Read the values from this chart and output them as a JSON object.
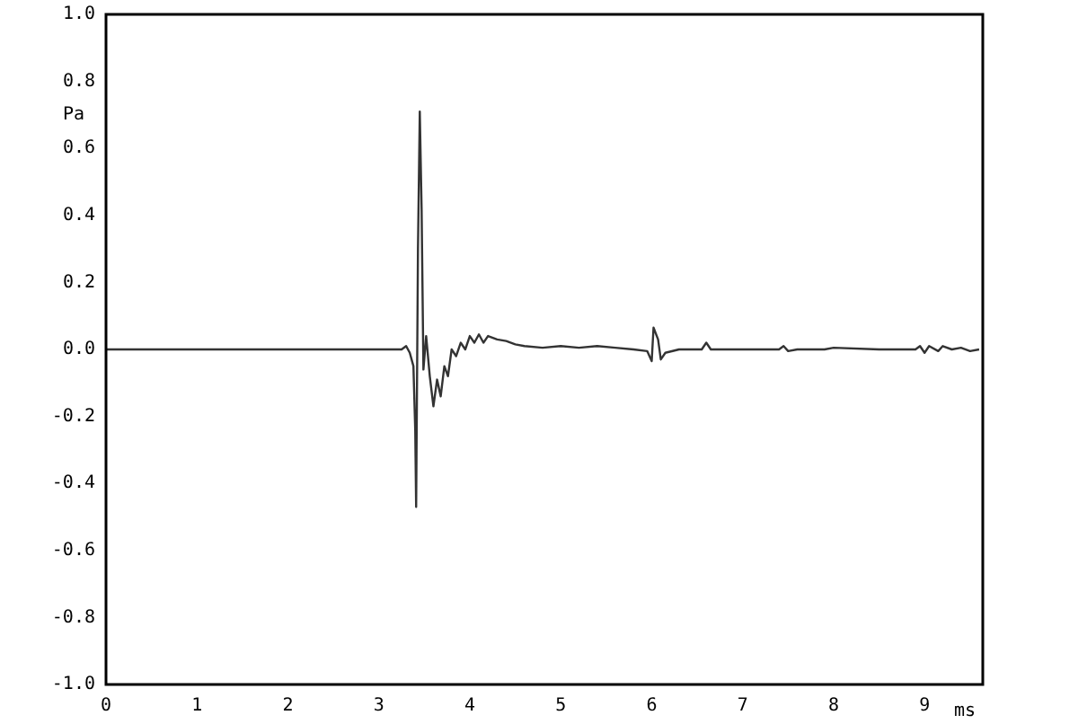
{
  "chart_data": {
    "type": "line",
    "xlabel": "ms",
    "ylabel": "Pa",
    "grid": false,
    "legend": false,
    "marker": "none",
    "line_style": "solid",
    "xlim": [
      0,
      9.64
    ],
    "xticks": [
      0,
      1,
      2,
      3,
      4,
      5,
      6,
      7,
      8,
      9
    ],
    "ylim": [
      -1,
      1
    ],
    "yticks": [
      {
        "value": -1,
        "label": "-1.0"
      },
      {
        "value": -0.8,
        "label": "-0.8"
      },
      {
        "value": -0.6,
        "label": "-0.6"
      },
      {
        "value": -0.4,
        "label": "-0.4"
      },
      {
        "value": -0.2,
        "label": "-0.2"
      },
      {
        "value": 0,
        "label": "0.0"
      },
      {
        "value": 0.2,
        "label": "0.2"
      },
      {
        "value": 0.4,
        "label": "0.4"
      },
      {
        "value": 0.6,
        "label": "0.6"
      },
      {
        "value": 0.8,
        "label": "0.8"
      },
      {
        "value": 1,
        "label": "1.0"
      }
    ],
    "series": [
      {
        "color": "#333333",
        "x": [
          0,
          3.25,
          3.3,
          3.34,
          3.38,
          3.4,
          3.41,
          3.43,
          3.45,
          3.47,
          3.49,
          3.52,
          3.56,
          3.6,
          3.64,
          3.68,
          3.72,
          3.76,
          3.8,
          3.85,
          3.9,
          3.95,
          4.0,
          4.05,
          4.1,
          4.15,
          4.2,
          4.3,
          4.4,
          4.5,
          4.6,
          4.8,
          5.0,
          5.2,
          5.4,
          5.6,
          5.8,
          5.95,
          6.0,
          6.02,
          6.07,
          6.1,
          6.15,
          6.3,
          6.55,
          6.6,
          6.65,
          7.0,
          7.4,
          7.45,
          7.5,
          7.6,
          7.9,
          8.0,
          8.5,
          8.9,
          8.95,
          9.0,
          9.05,
          9.15,
          9.2,
          9.3,
          9.4,
          9.5,
          9.6
        ],
        "values": [
          0,
          0,
          0.01,
          -0.01,
          -0.05,
          -0.24,
          -0.47,
          0.3,
          0.71,
          0.42,
          -0.06,
          0.04,
          -0.08,
          -0.17,
          -0.09,
          -0.14,
          -0.05,
          -0.08,
          0,
          -0.02,
          0.02,
          0,
          0.04,
          0.02,
          0.045,
          0.02,
          0.04,
          0.03,
          0.025,
          0.015,
          0.01,
          0.005,
          0.01,
          0.005,
          0.01,
          0.005,
          0,
          -0.005,
          -0.035,
          0.065,
          0.03,
          -0.03,
          -0.01,
          0,
          0,
          0.02,
          0,
          0,
          0,
          0.01,
          -0.005,
          0,
          0,
          0.005,
          0,
          0,
          0.01,
          -0.01,
          0.01,
          -0.005,
          0.01,
          0,
          0.005,
          -0.005,
          0
        ]
      }
    ]
  }
}
